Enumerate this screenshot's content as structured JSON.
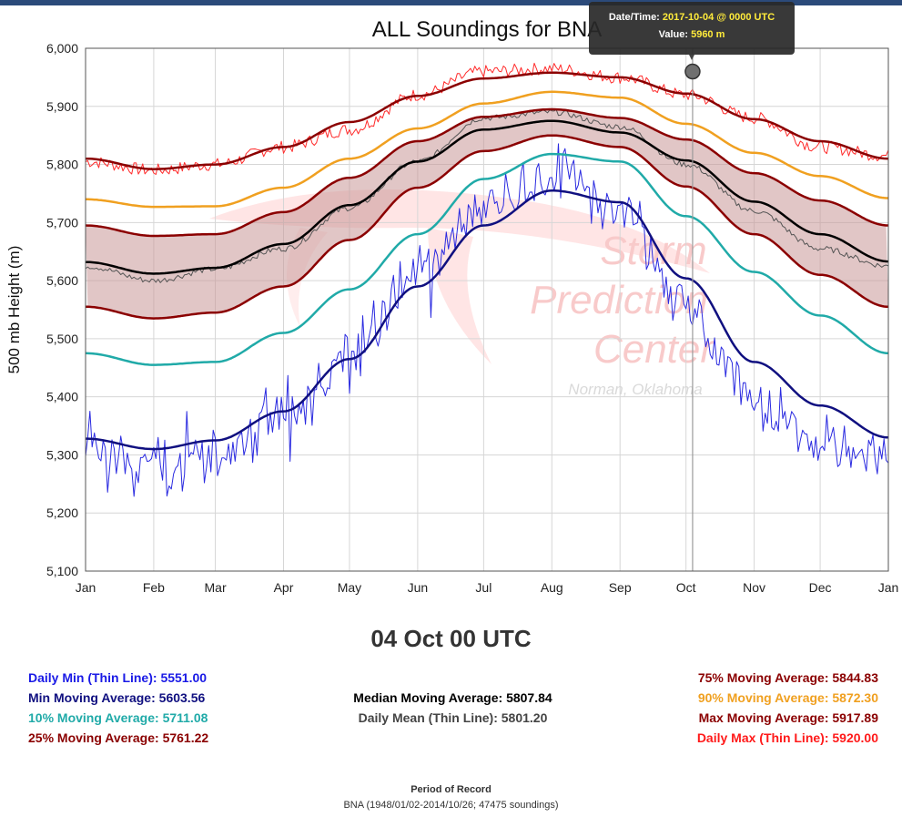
{
  "tooltip": {
    "date_label": "Date/Time:",
    "date_value": "2017-10-04 @ 0000 UTC",
    "value_label": "Value:",
    "value_value": "5960 m"
  },
  "chart_data": {
    "type": "line",
    "title": "ALL Soundings for BNA",
    "ylabel": "500 mb Height (m)",
    "xlabel": "",
    "ylim": [
      5100,
      6000
    ],
    "yticks": [
      5100,
      5200,
      5300,
      5400,
      5500,
      5600,
      5700,
      5800,
      5900,
      6000
    ],
    "ytick_labels": [
      "5,100",
      "5,200",
      "5,300",
      "5,400",
      "5,500",
      "5,600",
      "5,700",
      "5,800",
      "5,900",
      "6,000"
    ],
    "x_labels": [
      "Jan",
      "Feb",
      "Mar",
      "Apr",
      "May",
      "Jun",
      "Jul",
      "Aug",
      "Sep",
      "Oct",
      "Nov",
      "Dec",
      "Jan"
    ],
    "x_anchor_days": [
      1,
      32,
      60,
      91,
      121,
      152,
      182,
      213,
      244,
      274,
      305,
      335,
      366
    ],
    "grid": true,
    "series": [
      {
        "name": "Daily Max (Thin Line)",
        "color": "#ff2a2a",
        "style": "thin",
        "x": [
          1,
          32,
          60,
          91,
          121,
          152,
          182,
          213,
          244,
          274,
          305,
          335,
          366
        ],
        "values": [
          5805,
          5790,
          5800,
          5830,
          5860,
          5920,
          5960,
          5965,
          5950,
          5920,
          5880,
          5830,
          5815
        ]
      },
      {
        "name": "Max Moving Average",
        "color": "#8b0000",
        "style": "thick",
        "x": [
          1,
          32,
          60,
          91,
          121,
          152,
          182,
          213,
          244,
          274,
          305,
          335,
          366
        ],
        "values": [
          5810,
          5792,
          5800,
          5830,
          5873,
          5918,
          5948,
          5958,
          5950,
          5922,
          5878,
          5840,
          5810
        ]
      },
      {
        "name": "90% Moving Average",
        "color": "#f0a020",
        "style": "thick",
        "x": [
          1,
          32,
          60,
          91,
          121,
          152,
          182,
          213,
          244,
          274,
          305,
          335,
          366
        ],
        "values": [
          5740,
          5727,
          5728,
          5760,
          5810,
          5862,
          5905,
          5925,
          5915,
          5870,
          5820,
          5780,
          5742
        ]
      },
      {
        "name": "75% Moving Average",
        "color": "#8b0000",
        "style": "thick",
        "x": [
          1,
          32,
          60,
          91,
          121,
          152,
          182,
          213,
          244,
          274,
          305,
          335,
          366
        ],
        "values": [
          5695,
          5677,
          5680,
          5718,
          5777,
          5840,
          5882,
          5895,
          5880,
          5843,
          5785,
          5738,
          5695
        ]
      },
      {
        "name": "Median Moving Average",
        "color": "#000000",
        "style": "thick",
        "x": [
          1,
          32,
          60,
          91,
          121,
          152,
          182,
          213,
          244,
          274,
          305,
          335,
          366
        ],
        "values": [
          5632,
          5612,
          5622,
          5663,
          5730,
          5805,
          5860,
          5875,
          5855,
          5807,
          5736,
          5680,
          5633
        ]
      },
      {
        "name": "Daily Mean (Thin Line)",
        "color": "#555555",
        "style": "thin",
        "x": [
          1,
          32,
          60,
          91,
          121,
          152,
          182,
          213,
          244,
          274,
          305,
          335,
          366
        ],
        "values": [
          5625,
          5600,
          5620,
          5655,
          5725,
          5805,
          5880,
          5890,
          5865,
          5800,
          5720,
          5655,
          5625
        ]
      },
      {
        "name": "25% Moving Average",
        "color": "#8b0000",
        "style": "thick",
        "x": [
          1,
          32,
          60,
          91,
          121,
          152,
          182,
          213,
          244,
          274,
          305,
          335,
          366
        ],
        "values": [
          5555,
          5535,
          5545,
          5590,
          5670,
          5760,
          5823,
          5850,
          5830,
          5762,
          5680,
          5610,
          5555
        ]
      },
      {
        "name": "10% Moving Average",
        "color": "#20aaa8",
        "style": "thick",
        "x": [
          1,
          32,
          60,
          91,
          121,
          152,
          182,
          213,
          244,
          274,
          305,
          335,
          366
        ],
        "values": [
          5475,
          5455,
          5460,
          5510,
          5585,
          5680,
          5775,
          5818,
          5805,
          5711,
          5615,
          5540,
          5475
        ]
      },
      {
        "name": "Min Moving Average",
        "color": "#101080",
        "style": "thick",
        "x": [
          1,
          32,
          60,
          91,
          121,
          152,
          182,
          213,
          244,
          274,
          305,
          335,
          366
        ],
        "values": [
          5328,
          5310,
          5325,
          5375,
          5465,
          5590,
          5695,
          5755,
          5735,
          5604,
          5460,
          5385,
          5330
        ]
      },
      {
        "name": "Daily Min (Thin Line)",
        "color": "#2a2ae0",
        "style": "thin",
        "x": [
          1,
          32,
          60,
          91,
          121,
          152,
          182,
          213,
          244,
          274,
          305,
          335,
          366
        ],
        "values": [
          5320,
          5270,
          5290,
          5360,
          5470,
          5620,
          5730,
          5780,
          5720,
          5551,
          5400,
          5330,
          5310
        ]
      }
    ],
    "band": {
      "between": [
        "75% Moving Average",
        "25% Moving Average"
      ],
      "color": "#c89898"
    },
    "selected_point": {
      "day": 277,
      "value": 5960
    },
    "crosshair_day": 277,
    "watermark": {
      "lines": [
        "Storm",
        "Prediction",
        "Center",
        "Norman, Oklahoma"
      ]
    }
  },
  "selected_date": "04 Oct 00 UTC",
  "stats_left": [
    {
      "label": "Daily Min (Thin Line): ",
      "value": "5551.00",
      "color": "#1a1ae6"
    },
    {
      "label": "Min Moving Average: ",
      "value": "5603.56",
      "color": "#101080"
    },
    {
      "label": "10% Moving Average: ",
      "value": "5711.08",
      "color": "#20aaa8"
    },
    {
      "label": "25% Moving Average: ",
      "value": "5761.22",
      "color": "#8b0000"
    }
  ],
  "stats_middle": [
    {
      "label": "Median Moving Average: ",
      "value": "5807.84",
      "color": "#000000"
    },
    {
      "label": "Daily Mean (Thin Line): ",
      "value": "5801.20",
      "color": "#444444"
    }
  ],
  "stats_right": [
    {
      "label": "75% Moving Average: ",
      "value": "5844.83",
      "color": "#8b0000"
    },
    {
      "label": "90% Moving Average: ",
      "value": "5872.30",
      "color": "#f0a020"
    },
    {
      "label": "Max Moving Average: ",
      "value": "5917.89",
      "color": "#8b0000"
    },
    {
      "label": "Daily Max (Thin Line): ",
      "value": "5920.00",
      "color": "#ff1a1a"
    }
  ],
  "period": {
    "title": "Period of Record",
    "text": "BNA (1948/01/02-2014/10/26; 47475 soundings)"
  }
}
